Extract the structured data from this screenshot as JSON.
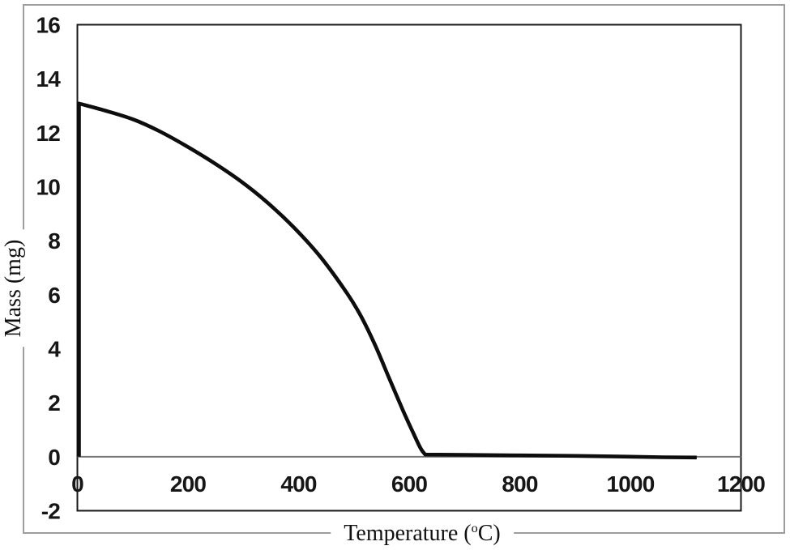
{
  "chart_data": {
    "type": "line",
    "xlabel_prefix": "Temperature (",
    "xlabel_sup": "o",
    "xlabel_suffix": "C)",
    "ylabel": "Mass (mg)",
    "xlim": [
      0,
      1200
    ],
    "ylim": [
      -2,
      16
    ],
    "xticks": [
      0,
      200,
      400,
      600,
      800,
      1000,
      1200
    ],
    "yticks": [
      16,
      14,
      12,
      10,
      8,
      6,
      4,
      2,
      0,
      -2
    ],
    "grid": false,
    "legend": false,
    "zero_line_at_y": 0,
    "series": [
      {
        "name": "mass",
        "segments": [
          {
            "shape": "line",
            "points": [
              [
                3,
                0
              ],
              [
                3,
                13.08
              ]
            ]
          },
          {
            "shape": "smooth",
            "points": [
              [
                3,
                13.08
              ],
              [
                50,
                12.82
              ],
              [
                100,
                12.5
              ],
              [
                147,
                12.07
              ],
              [
                195,
                11.53
              ],
              [
                244,
                10.92
              ],
              [
                293,
                10.24
              ],
              [
                341,
                9.46
              ],
              [
                391,
                8.5
              ],
              [
                440,
                7.39
              ],
              [
                488,
                6.04
              ],
              [
                513,
                5.2
              ],
              [
                538,
                4.15
              ],
              [
                563,
                2.95
              ],
              [
                588,
                1.75
              ],
              [
                608,
                0.85
              ],
              [
                621,
                0.3
              ],
              [
                629,
                0.08
              ]
            ]
          },
          {
            "shape": "line",
            "points": [
              [
                629,
                0.08
              ],
              [
                700,
                0.07
              ],
              [
                800,
                0.05
              ],
              [
                900,
                0.03
              ],
              [
                1000,
                0.0
              ],
              [
                1060,
                -0.02
              ],
              [
                1120,
                -0.03
              ]
            ]
          }
        ]
      }
    ],
    "colors": {
      "curve": "#0d0d0d",
      "frame": "#1a1a1a",
      "zero_line": "#757575",
      "outer_border": "#9d9d9d"
    }
  }
}
